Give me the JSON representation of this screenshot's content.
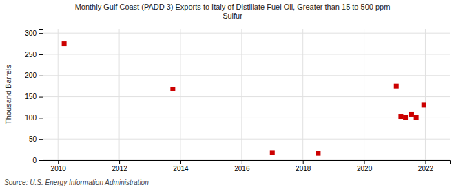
{
  "chart_data": {
    "type": "scatter",
    "title": "Monthly Gulf Coast (PADD 3) Exports to Italy of Distillate Fuel Oil, Greater than 15 to 500 ppm\nSulfur",
    "y_label": "Thousand Barrels",
    "source": "Source: U.S. Energy Information Administration",
    "x": [
      2010.2,
      2013.75,
      2017.0,
      2018.5,
      2021.05,
      2021.2,
      2021.35,
      2021.55,
      2021.7,
      2021.95
    ],
    "values": [
      275,
      168,
      18,
      16,
      175,
      103,
      100,
      108,
      100,
      130
    ],
    "color": "#cc0000",
    "marker": "square",
    "xlim": [
      2009.5,
      2022.8
    ],
    "xticks": [
      2010,
      2012,
      2014,
      2016,
      2018,
      2020,
      2022
    ],
    "ylim": [
      0,
      310
    ],
    "yticks": [
      0,
      50,
      100,
      150,
      200,
      250,
      300
    ],
    "grid": true
  }
}
